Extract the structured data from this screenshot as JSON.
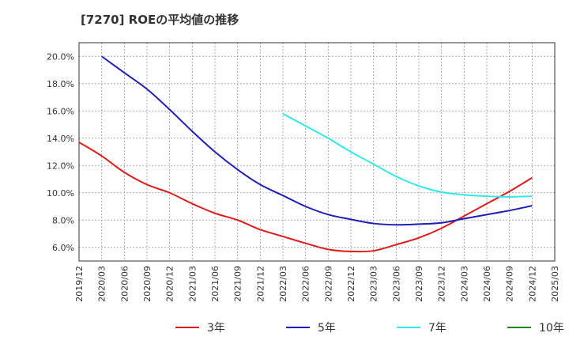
{
  "chart_data": {
    "type": "line",
    "title": "[7270]  ROEの平均値の推移",
    "x": [
      "2019/12",
      "2020/03",
      "2020/06",
      "2020/09",
      "2020/12",
      "2021/03",
      "2021/06",
      "2021/09",
      "2021/12",
      "2022/03",
      "2022/06",
      "2022/09",
      "2022/12",
      "2023/03",
      "2023/06",
      "2023/09",
      "2023/12",
      "2024/03",
      "2024/06",
      "2024/09",
      "2024/12",
      "2025/03"
    ],
    "ylim": [
      5.0,
      21.0
    ],
    "yticks": [
      6.0,
      8.0,
      10.0,
      12.0,
      14.0,
      16.0,
      18.0,
      20.0
    ],
    "ytick_labels": [
      "6.0%",
      "8.0%",
      "10.0%",
      "12.0%",
      "14.0%",
      "16.0%",
      "18.0%",
      "20.0%"
    ],
    "grid": true,
    "legend_position": "bottom",
    "series": [
      {
        "name": "3年",
        "color": "#dd1c1c",
        "values": [
          13.7,
          12.7,
          11.5,
          10.6,
          10.0,
          9.2,
          8.5,
          8.0,
          7.3,
          6.8,
          6.3,
          5.85,
          5.7,
          5.75,
          6.2,
          6.7,
          7.4,
          8.3,
          9.2,
          10.1,
          11.1,
          null
        ]
      },
      {
        "name": "5年",
        "color": "#1f1fb5",
        "values": [
          null,
          20.0,
          18.8,
          17.6,
          16.1,
          14.5,
          13.0,
          11.7,
          10.6,
          9.8,
          9.0,
          8.4,
          8.05,
          7.75,
          7.65,
          7.7,
          7.8,
          8.1,
          8.4,
          8.7,
          9.05,
          null
        ]
      },
      {
        "name": "7年",
        "color": "#33e8e8",
        "values": [
          null,
          null,
          null,
          null,
          null,
          null,
          null,
          null,
          null,
          15.8,
          14.9,
          14.0,
          13.0,
          12.1,
          11.2,
          10.5,
          10.05,
          9.85,
          9.75,
          9.7,
          9.75,
          null
        ]
      },
      {
        "name": "10年",
        "color": "#1a8a1a",
        "values": [
          null,
          null,
          null,
          null,
          null,
          null,
          null,
          null,
          null,
          null,
          null,
          null,
          null,
          null,
          null,
          null,
          null,
          null,
          null,
          null,
          null,
          null
        ]
      }
    ]
  }
}
